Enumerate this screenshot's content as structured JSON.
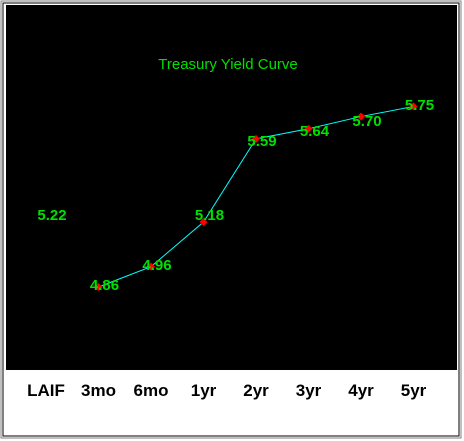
{
  "colors": {
    "plot_background": "#000000",
    "line": "#00ffff",
    "marker": "#ff0000",
    "labels": "#00e000",
    "axis": "#000000"
  },
  "chart_data": {
    "type": "line",
    "title": "Treasury Yield Curve",
    "categories": [
      "LAIF",
      "3mo",
      "6mo",
      "1yr",
      "2yr",
      "3yr",
      "4yr",
      "5yr"
    ],
    "data_labels": [
      "5.22",
      "4.86",
      "4.96",
      "5.18",
      "5.59",
      "5.64",
      "5.70",
      "5.75"
    ],
    "series": [
      {
        "values": [
          null,
          4.86,
          4.96,
          5.18,
          5.59,
          5.64,
          5.7,
          5.75
        ],
        "marker": "diamond"
      }
    ],
    "ylim": [
      4.5,
      6.25
    ],
    "y_ticks": 9,
    "y_tick_labels_visible": false,
    "grid": false,
    "legend": "none"
  }
}
